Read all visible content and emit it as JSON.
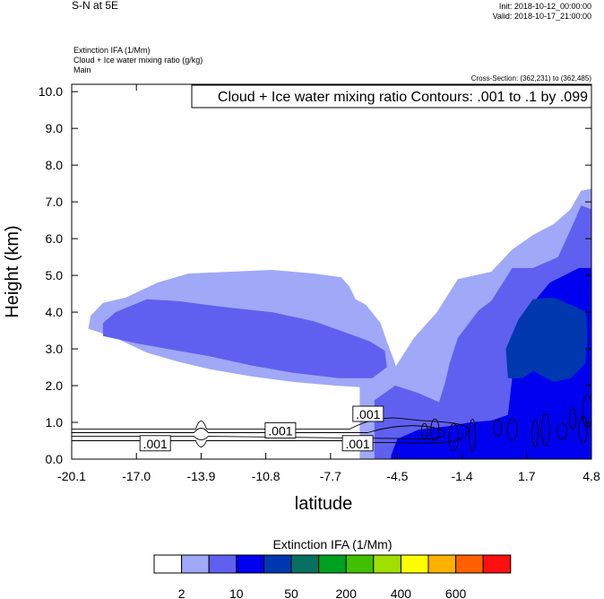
{
  "header": {
    "title": "S-N at 5E",
    "init": "Init: 2018-10-12_00:00:00",
    "valid": "Valid: 2018-10-17_21:00:00",
    "field_lines": [
      "Extinction IFA   (1/Mm)",
      "Cloud + Ice water mixing ratio   (g/kg)",
      "Main"
    ],
    "cross_section": "Cross-Section: (362,231) to (362,485)"
  },
  "chart_data": {
    "type": "heatmap",
    "title": "S-N at 5E",
    "xlabel": "latitude",
    "ylabel": "Height (km)",
    "x_ticks": [
      "-20.1",
      "-17.0",
      "-13.9",
      "-10.8",
      "-7.7",
      "-4.5",
      "-1.4",
      "1.7",
      "4.8"
    ],
    "x_range": [
      -20.1,
      4.8
    ],
    "y_ticks": [
      "0.0",
      "1.0",
      "2.0",
      "3.0",
      "4.0",
      "5.0",
      "6.0",
      "7.0",
      "8.0",
      "9.0",
      "10.0"
    ],
    "y_range": [
      0,
      10.2
    ],
    "contour_info": "Cloud + Ice water mixing ratio Contours: .001 to .1 by .099",
    "contour_labels": [
      {
        "text": ".001",
        "lat": -16.1,
        "km": 0.42
      },
      {
        "text": ".001",
        "lat": -10.1,
        "km": 0.77
      },
      {
        "text": ".001",
        "lat": -5.9,
        "km": 1.22
      },
      {
        "text": ".001",
        "lat": -6.4,
        "km": 0.42
      }
    ],
    "colorbar": {
      "label": "Extinction IFA  (1/Mm)",
      "colors": [
        "#ffffff",
        "#a0a8f8",
        "#6060f0",
        "#0000f0",
        "#0038b0",
        "#087060",
        "#00a020",
        "#40c000",
        "#a0e000",
        "#ffff00",
        "#ffb000",
        "#ff6000",
        "#ff1010"
      ],
      "tick_labels": [
        "2",
        "10",
        "50",
        "200",
        "400",
        "600"
      ]
    },
    "series": [
      {
        "name": "2",
        "color": "#a0a8f8",
        "polygons": [
          [
            [
              -19.3,
              3.55
            ],
            [
              -19.2,
              3.9
            ],
            [
              -18.6,
              4.25
            ],
            [
              -17.5,
              4.4
            ],
            [
              -16.0,
              4.8
            ],
            [
              -14.5,
              5.05
            ],
            [
              -12.5,
              5.1
            ],
            [
              -10.5,
              5.15
            ],
            [
              -8.5,
              5.05
            ],
            [
              -7.2,
              4.95
            ],
            [
              -6.8,
              4.7
            ],
            [
              -6.5,
              4.35
            ],
            [
              -6.0,
              4.2
            ],
            [
              -5.3,
              3.7
            ],
            [
              -5.0,
              3.2
            ],
            [
              -4.6,
              2.6
            ],
            [
              -4.5,
              2.3
            ],
            [
              -5.0,
              1.95
            ],
            [
              -6.0,
              1.95
            ],
            [
              -7.5,
              2.0
            ],
            [
              -9.5,
              2.1
            ],
            [
              -11.5,
              2.25
            ],
            [
              -13.5,
              2.45
            ],
            [
              -15.0,
              2.65
            ],
            [
              -16.5,
              2.9
            ],
            [
              -18.0,
              3.3
            ]
          ],
          [
            [
              -6.3,
              1.95
            ],
            [
              -5.5,
              2.5
            ],
            [
              -4.6,
              2.5
            ],
            [
              -3.7,
              3.3
            ],
            [
              -2.6,
              4.0
            ],
            [
              -1.6,
              4.9
            ],
            [
              0.0,
              5.1
            ],
            [
              1.0,
              5.7
            ],
            [
              2.0,
              6.1
            ],
            [
              3.0,
              6.4
            ],
            [
              3.8,
              6.8
            ],
            [
              4.3,
              7.3
            ],
            [
              4.75,
              7.35
            ],
            [
              4.8,
              7.35
            ],
            [
              4.8,
              0.0
            ],
            [
              -6.3,
              0.0
            ]
          ]
        ]
      },
      {
        "name": "10",
        "color": "#6060f0",
        "polygons": [
          [
            [
              -18.6,
              3.35
            ],
            [
              -18.6,
              3.7
            ],
            [
              -18.0,
              4.0
            ],
            [
              -16.5,
              4.35
            ],
            [
              -15.0,
              4.3
            ],
            [
              -13.0,
              4.15
            ],
            [
              -10.5,
              4.0
            ],
            [
              -8.5,
              3.75
            ],
            [
              -7.0,
              3.45
            ],
            [
              -5.8,
              3.2
            ],
            [
              -5.1,
              2.95
            ],
            [
              -5.0,
              2.5
            ],
            [
              -5.7,
              2.2
            ],
            [
              -7.3,
              2.2
            ],
            [
              -9.5,
              2.35
            ],
            [
              -11.5,
              2.55
            ],
            [
              -13.5,
              2.8
            ],
            [
              -15.5,
              3.0
            ],
            [
              -17.0,
              3.15
            ]
          ],
          [
            [
              -5.6,
              1.6
            ],
            [
              -4.6,
              2.0
            ],
            [
              -3.5,
              1.8
            ],
            [
              -2.5,
              1.55
            ],
            [
              -2.2,
              2.1
            ],
            [
              -2.0,
              2.6
            ],
            [
              -1.6,
              3.3
            ],
            [
              -0.6,
              4.05
            ],
            [
              0.0,
              4.3
            ],
            [
              1.0,
              5.2
            ],
            [
              2.0,
              5.2
            ],
            [
              3.2,
              5.5
            ],
            [
              4.0,
              6.5
            ],
            [
              4.3,
              6.9
            ],
            [
              4.8,
              6.8
            ],
            [
              4.8,
              0.0
            ],
            [
              -5.6,
              0.0
            ]
          ]
        ]
      },
      {
        "name": "50",
        "color": "#0000f0",
        "polygons": [
          [
            [
              -4.8,
              0.1
            ],
            [
              -4.5,
              0.55
            ],
            [
              -3.5,
              0.8
            ],
            [
              -2.0,
              0.9
            ],
            [
              -1.0,
              1.0
            ],
            [
              0.0,
              1.05
            ],
            [
              0.8,
              1.2
            ],
            [
              1.0,
              2.2
            ],
            [
              0.8,
              2.8
            ],
            [
              1.3,
              3.6
            ],
            [
              2.0,
              4.25
            ],
            [
              2.8,
              4.8
            ],
            [
              3.5,
              5.0
            ],
            [
              4.2,
              5.2
            ],
            [
              4.8,
              5.2
            ],
            [
              4.8,
              0.0
            ],
            [
              -4.8,
              0.0
            ]
          ]
        ]
      },
      {
        "name": "200",
        "color": "#0038b0",
        "polygons": [
          [
            [
              0.8,
              2.2
            ],
            [
              0.7,
              3.0
            ],
            [
              1.3,
              3.8
            ],
            [
              2.0,
              4.35
            ],
            [
              3.0,
              4.4
            ],
            [
              4.0,
              4.15
            ],
            [
              4.55,
              4.0
            ],
            [
              4.6,
              3.2
            ],
            [
              4.5,
              2.6
            ],
            [
              3.8,
              2.2
            ],
            [
              3.0,
              2.1
            ],
            [
              2.0,
              2.4
            ],
            [
              1.5,
              2.2
            ]
          ]
        ]
      }
    ]
  }
}
